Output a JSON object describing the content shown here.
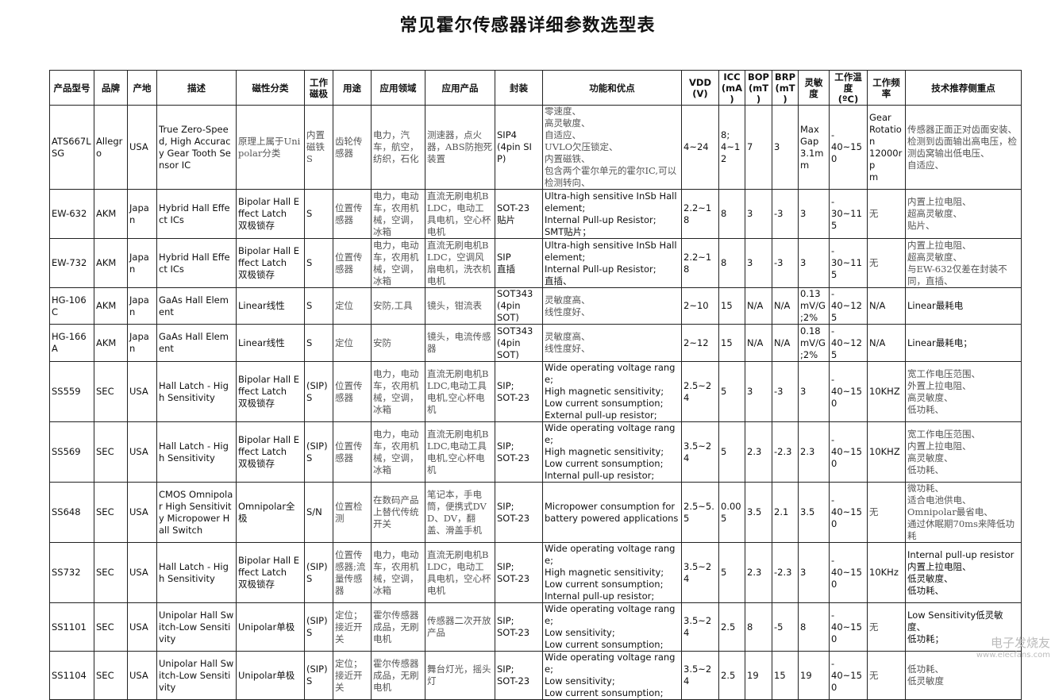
{
  "title": "常见霍尔传感器详细参数选型表",
  "watermark": {
    "name": "电子发烧友",
    "url": "www.elecfans.com"
  },
  "table": {
    "headers": [
      "产品型号",
      "品牌",
      "产地",
      "描述",
      "磁性分类",
      "工作\n磁极",
      "用途",
      "应用领域",
      "应用产品",
      "封装",
      "功能和优点",
      "VDD\n(V)",
      "ICC\n(mA\n)",
      "BOP\n(mT\n)",
      "BRP\n(mT\n)",
      "灵敏\n度",
      "工作温\n度\n(ºC)",
      "工作频\n率",
      "技术推荐侧重点"
    ],
    "rows": [
      [
        "ATS667L\nSG",
        "Allegro",
        "USA",
        "True Zero-Speed, High Accuracy Gear Tooth Sensor IC",
        "原理上属于Unipolar分类",
        "内置\n磁铁\nS",
        "齿轮传感器",
        "电力，汽车，航空，纺织，石化",
        "测速器，点火器，ABS防抱死装置",
        "SIP4\n(4pin SIP)",
        "零速度、\n高灵敏度、\n自适应、\nUVLO欠压锁定、\n内置磁铁、\n包含两个霍尔单元的霍尔IC,可以检测转向、",
        "4~24",
        "8;\n4~1\n2",
        "7",
        "3",
        "Max\nGap\n3.1m\nm",
        "-\n40~150",
        "Gear\nRotation\n12000rp\nm",
        "传感器正面正对齿面安装、\n检测到齿面输出高电压，检测齿窝输出低电压、\n自适应、"
      ],
      [
        "EW-632",
        "AKM",
        "Japa\nn",
        "Hybrid Hall Effect ICs",
        "Bipolar Hall Effect Latch\n双极锁存",
        "S",
        "位置传感器",
        "电力，电动车，农用机械，空调，冰箱",
        "直流无刷电机BLDC，电动工具电机，空心杯电机",
        "SOT-23\n贴片",
        "Ultra-high sensitive InSb Hall element;\nInternal Pull-up Resistor;\nSMT贴片；",
        "2.2~18",
        "8",
        "3",
        "-3",
        "3",
        "-\n30~115",
        "无",
        "内置上拉电阻、\n超高灵敏度、\n贴片、"
      ],
      [
        "EW-732",
        "AKM",
        "Japa\nn",
        "Hybrid Hall Effect ICs",
        "Bipolar Hall Effect Latch\n双极锁存",
        "S",
        "位置传感器",
        "电力，电动车，农用机械，空调，冰箱",
        "直流无刷电机BLDC，空调风扇电机，洗衣机电机",
        "SIP\n直插",
        "Ultra-high sensitive InSb Hall element;\nInternal Pull-up Resistor;\n直插、",
        "2.2~18",
        "8",
        "3",
        "-3",
        "3",
        "-\n30~115",
        "无",
        "内置上拉电阻、\n超高灵敏度、\n与EW-632仅差在封装不同，直插、"
      ],
      [
        "HG-106C",
        "AKM",
        "Japa\nn",
        "GaAs Hall Element",
        "Linear线性",
        "S",
        "定位",
        "安防,工具",
        "镜头，钳流表",
        "SOT343\n(4pin\nSOT)",
        "灵敏度高、\n线性度好、",
        "2~10",
        "15",
        "N/A",
        "N/A",
        "0.13\nmV/G\n;2%",
        "-\n40~125",
        "N/A",
        "Linear最耗电"
      ],
      [
        "HG-166A",
        "AKM",
        "Japa\nn",
        "GaAs Hall Element",
        "Linear线性",
        "S",
        "定位",
        "安防",
        "镜头，电流传感器",
        "SOT343\n(4pin\nSOT)",
        "灵敏度高、\n线性度好、",
        "2~12",
        "15",
        "N/A",
        "N/A",
        "0.18\nmV/G\n;2%",
        "-\n40~125",
        "N/A",
        "Linear最耗电；"
      ],
      [
        "SS559",
        "SEC",
        "USA",
        "Hall Latch - High Sensitivity",
        "Bipolar Hall Effect Latch\n双极锁存",
        "(SIP)\nS",
        "位置传感器",
        "电力，电动车，农用机械，空调，冰箱",
        "直流无刷电机BLDC,电动工具电机,空心杯电机",
        "SIP;\nSOT-23",
        "Wide operating voltage range;\nHigh magnetic sensitivity;\nLow current sonsumption;\nExternal pull-up resistor;",
        "2.5~24",
        "5",
        "3",
        "-3",
        "3",
        "-\n40~150",
        "10KHZ",
        "宽工作电压范围、\n外置上拉电阻、\n高灵敏度、\n低功耗、"
      ],
      [
        "SS569",
        "SEC",
        "USA",
        "Hall Latch - High Sensitivity",
        "Bipolar Hall Effect Latch\n双极锁存",
        "(SIP)\nS",
        "位置传感器",
        "电力，电动车，农用机械，空调，冰箱",
        "直流无刷电机BLDC,电动工具电机,空心杯电机",
        "SIP;\nSOT-23",
        "Wide operating voltage range;\nHigh magnetic sensitivity;\nLow current sonsumption;\nInternal pull-up resistor;",
        "3.5~24",
        "5",
        "2.3",
        "-2.3",
        "2.3",
        "-\n40~150",
        "10KHZ",
        "宽工作电压范围、\n内置上拉电阻、\n高灵敏度、\n低功耗、"
      ],
      [
        "SS648",
        "SEC",
        "USA",
        "CMOS Omnipolar High Sensitivity Micropower Hall Switch",
        "Omnipolar全极",
        "S/N",
        "位置检测",
        "在数码产品上替代传统开关",
        "笔记本，手电筒，便携式DVD、DV，翻盖、滑盖手机",
        "SIP;\nSOT-23",
        "Micropower consumption for battery powered applications",
        "2.5~5.\n5",
        "0.00\n5",
        "3.5",
        "2.1",
        "3.5",
        "-\n40~150",
        "无",
        "微功耗、\n适合电池供电、\nOmnipolar最省电、\n通过休眠期70ms来降低功耗"
      ],
      [
        "SS732",
        "SEC",
        "USA",
        "Hall Latch - High Sensitivity",
        "Bipolar Hall Effect Latch\n双极锁存",
        "(SIP)\nS",
        "位置传感器;流量传感器",
        "电力，电动车，农用机械，空调，冰箱",
        "直流无刷电机BLDC，电动工具电机，空心杯电机",
        "SIP;\nSOT-23",
        "Wide operating voltage range;\nHigh magnetic sensitivity;\nLow current sonsumption;\nInternal pull-up resistor;",
        "3.5~24",
        "5",
        "2.3",
        "-2.3",
        "3",
        "-\n40~150",
        "10KHz",
        "Internal pull-up resistor\n内置上拉电阻、\n低灵敏度、\n低功耗、"
      ],
      [
        "SS1101",
        "SEC",
        "USA",
        "Unipolar Hall Switch-Low Sensitivity",
        "Unipolar单极",
        "(SIP)\nS",
        "定位；接近开关",
        "霍尔传感器成品，无刷电机",
        "传感器二次开放产品",
        "SIP;\nSOT-23",
        "Wide operating voltage range;\nLow sensitivity;\nLow current sonsumption;",
        "3.5~24",
        "2.5",
        "8",
        "-5",
        "8",
        "-\n40~150",
        "无",
        "Low Sensitivity低灵敏度、\n低功耗；"
      ],
      [
        "SS1104",
        "SEC",
        "USA",
        "Unipolar Hall Switch-Low Sensitivity",
        "Unipolar单极",
        "(SIP)\nS",
        "定位；接近开关",
        "霍尔传感器成品，无刷电机",
        "舞台灯光，摇头灯",
        "SIP;\nSOT-23",
        "Wide operating voltage range;\nLow sensitivity;\nLow current sonsumption;",
        "3.5~24",
        "2.5",
        "19",
        "15",
        "19",
        "-\n40~150",
        "无",
        "低功耗、\n低灵敏度"
      ]
    ]
  }
}
